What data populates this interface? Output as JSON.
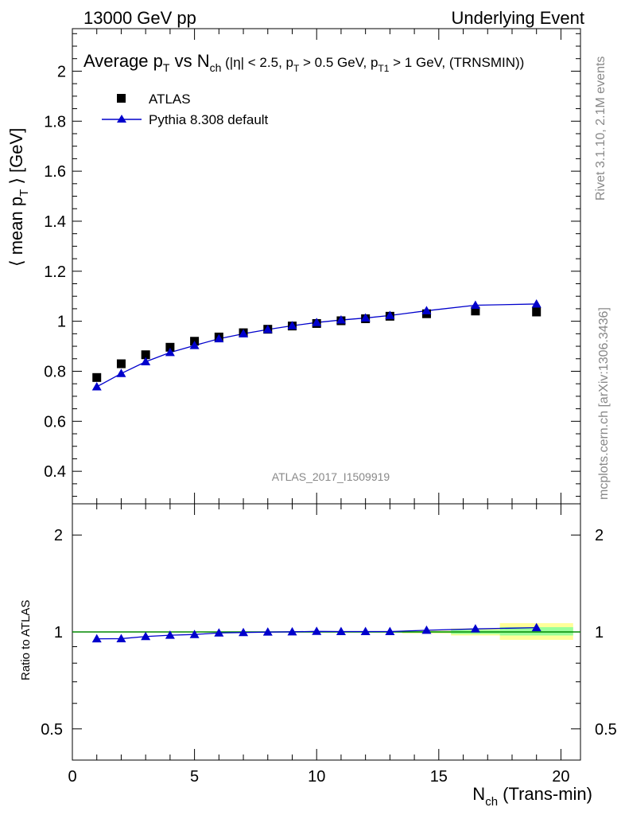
{
  "header": {
    "left": "13000 GeV pp",
    "right": "Underlying Event"
  },
  "side_text": {
    "rivet": "Rivet 3.1.10,  2.1M events",
    "mcplots": "mcplots.cern.ch [arXiv:1306.3436]"
  },
  "colors": {
    "data": "#000000",
    "mc": "#0000cc",
    "band_inner": "#99ff99",
    "band_outer": "#ffff99",
    "reference_line": "#008800",
    "watermark": "#888888"
  },
  "chart_data": [
    {
      "type": "scatter",
      "title": {
        "main": "Average p",
        "main_sub": "T",
        "vs": " vs N",
        "vs_sub": "ch",
        "cuts_1": " (|η| < 2.5, p",
        "cuts_1_sub": "T",
        "cuts_2": " > 0.5 GeV, p",
        "cuts_2_sub": "T1",
        "cuts_3": " > 1 GeV, (TRNSMIN))"
      },
      "ylabel": {
        "pre": "⟨ mean p",
        "sub": "T",
        "post": " ⟩ [GeV]"
      },
      "xlim": [
        0,
        20.8
      ],
      "ylim": [
        0.27,
        2.17
      ],
      "yticks": [
        0.4,
        0.6,
        0.8,
        1,
        1.2,
        1.4,
        1.6,
        1.8,
        2
      ],
      "ytick_labels": [
        "0.4",
        "0.6",
        "0.8",
        "1",
        "1.2",
        "1.4",
        "1.6",
        "1.8",
        "2"
      ],
      "legend_position": "top-left",
      "watermark": "ATLAS_2017_I1509919",
      "series": [
        {
          "name": "ATLAS",
          "marker": "square",
          "x": [
            1,
            2,
            3,
            4,
            5,
            6,
            7,
            8,
            9,
            10,
            11,
            12,
            13,
            14.5,
            16.5,
            19
          ],
          "y": [
            0.775,
            0.83,
            0.866,
            0.896,
            0.92,
            0.937,
            0.954,
            0.968,
            0.981,
            0.991,
            1.002,
            1.01,
            1.02,
            1.03,
            1.041,
            1.037
          ]
        },
        {
          "name": "Pythia 8.308 default",
          "marker": "triangle",
          "x": [
            1,
            2,
            3,
            4,
            5,
            6,
            7,
            8,
            9,
            10,
            11,
            12,
            13,
            14.5,
            16.5,
            19
          ],
          "y": [
            0.738,
            0.791,
            0.838,
            0.875,
            0.903,
            0.93,
            0.95,
            0.967,
            0.982,
            0.995,
            1.005,
            1.013,
            1.023,
            1.042,
            1.064,
            1.069
          ]
        }
      ]
    },
    {
      "type": "line",
      "ylabel": "Ratio to ATLAS",
      "xlabel": {
        "pre": "N",
        "sub": "ch",
        "post": " (Trans-min)"
      },
      "xlim": [
        0,
        20.8
      ],
      "ylim": [
        0.4,
        2.5
      ],
      "ylog": true,
      "yticks": [
        0.5,
        1,
        2
      ],
      "ytick_labels": [
        "0.5",
        "1",
        "2"
      ],
      "xticks": [
        0,
        5,
        10,
        15,
        20
      ],
      "xtick_labels": [
        "0",
        "5",
        "10",
        "15",
        "20"
      ],
      "bands": [
        {
          "x0": 13.5,
          "x1": 15.5,
          "inner": [
            0.995,
            1.005
          ],
          "outer": [
            0.99,
            1.01
          ]
        },
        {
          "x0": 15.5,
          "x1": 17.5,
          "inner": [
            0.985,
            1.015
          ],
          "outer": [
            0.975,
            1.025
          ]
        },
        {
          "x0": 17.5,
          "x1": 20.5,
          "inner": [
            0.975,
            1.035
          ],
          "outer": [
            0.945,
            1.065
          ]
        }
      ],
      "series": [
        {
          "name": "Pythia 8.308 default",
          "x": [
            1,
            2,
            3,
            4,
            5,
            6,
            7,
            8,
            9,
            10,
            11,
            12,
            13,
            14.5,
            16.5,
            19
          ],
          "y": [
            0.952,
            0.953,
            0.968,
            0.977,
            0.982,
            0.993,
            0.996,
            0.999,
            1.001,
            1.004,
            1.003,
            1.003,
            1.003,
            1.012,
            1.022,
            1.031
          ]
        }
      ]
    }
  ]
}
